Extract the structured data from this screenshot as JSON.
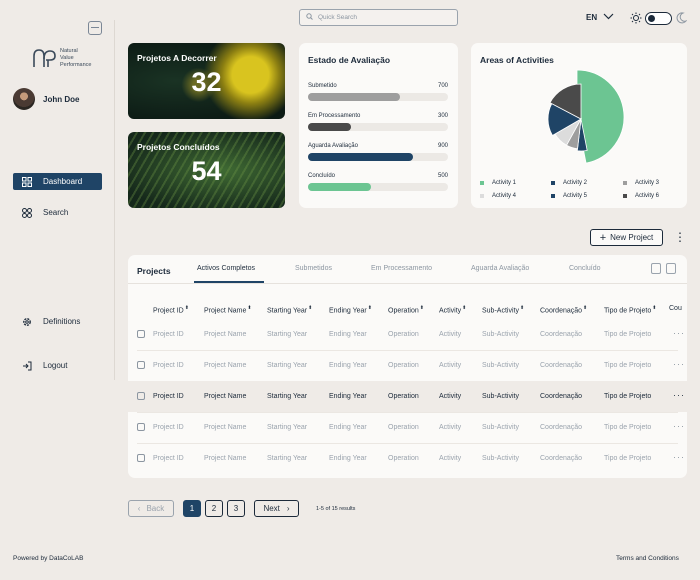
{
  "header": {
    "search_placeholder": "Quick Search",
    "language": "EN"
  },
  "sidebar": {
    "logo_text": [
      "Natural",
      "Value",
      "Performance"
    ],
    "user_name": "John Doe",
    "nav": [
      {
        "label": "Dashboard",
        "icon": "grid-icon",
        "active": true
      },
      {
        "label": "Search",
        "icon": "search-grid-icon",
        "active": false
      },
      {
        "label": "Definitions",
        "icon": "gear-icon",
        "active": false
      },
      {
        "label": "Logout",
        "icon": "logout-icon",
        "active": false
      }
    ]
  },
  "cards": {
    "ongoing": {
      "title": "Projetos A Decorrer",
      "value": "32"
    },
    "completed": {
      "title": "Projetos Concluídos",
      "value": "54"
    }
  },
  "estado": {
    "title": "Estado de Avaliação",
    "items": [
      {
        "label": "Submetido",
        "value": 700,
        "display": "700",
        "fraction": 0.66,
        "color": "#9e9e9e"
      },
      {
        "label": "Em Processamento",
        "value": 300,
        "display": "300",
        "fraction": 0.31,
        "color": "#4a4a4a"
      },
      {
        "label": "Aguarda Avaliação",
        "value": 900,
        "display": "900",
        "fraction": 0.75,
        "color": "#1f4466"
      },
      {
        "label": "Concluído",
        "value": 500,
        "display": "500",
        "fraction": 0.45,
        "color": "#6cc592"
      }
    ]
  },
  "areas": {
    "title": "Areas of Activities",
    "legend": [
      "Activity 1",
      "Activity 2",
      "Activity 3",
      "Activity 4",
      "Activity 5",
      "Activity 6"
    ]
  },
  "chart_data": {
    "type": "pie",
    "title": "Areas of Activities",
    "categories": [
      "Activity 1",
      "Activity 2",
      "Activity 3",
      "Activity 4",
      "Activity 5",
      "Activity 6"
    ],
    "values": [
      38,
      4,
      5,
      7,
      13,
      14
    ],
    "colors": [
      "#6cc592",
      "#1f4466",
      "#9e9e9e",
      "#dcdcdc",
      "#1f4466",
      "#4a4a4a"
    ],
    "legend_position": "bottom"
  },
  "actions": {
    "new_project": "New Project"
  },
  "table": {
    "label": "Projects",
    "tabs": [
      "Activos Completos",
      "Submetidos",
      "Em Processamento",
      "Aguarda Avaliação",
      "Concluído"
    ],
    "columns": [
      "Project ID",
      "Project Name",
      "Starting Year",
      "Ending Year",
      "Operation",
      "Activity",
      "Sub-Activity",
      "Coordenação",
      "Tipo de Projeto",
      "Cou"
    ],
    "rows": [
      [
        "Project ID",
        "Project Name",
        "Starting Year",
        "Ending Year",
        "Operation",
        "Activity",
        "Sub-Activity",
        "Coordenação",
        "Tipo de Projeto"
      ],
      [
        "Project ID",
        "Project Name",
        "Starting Year",
        "Ending Year",
        "Operation",
        "Activity",
        "Sub-Activity",
        "Coordenação",
        "Tipo de Projeto"
      ],
      [
        "Project ID",
        "Project Name",
        "Starting Year",
        "Ending Year",
        "Operation",
        "Activity",
        "Sub-Activity",
        "Coordenação",
        "Tipo de Projeto"
      ],
      [
        "Project ID",
        "Project Name",
        "Starting Year",
        "Ending Year",
        "Operation",
        "Activity",
        "Sub-Activity",
        "Coordenação",
        "Tipo de Projeto"
      ],
      [
        "Project ID",
        "Project Name",
        "Starting Year",
        "Ending Year",
        "Operation",
        "Activity",
        "Sub-Activity",
        "Coordenação",
        "Tipo de Projeto"
      ]
    ],
    "highlighted_row": 2
  },
  "pagination": {
    "back": "Back",
    "pages": [
      "1",
      "2",
      "3"
    ],
    "current": "1",
    "next": "Next",
    "results": "1-5 of 15 results"
  },
  "footer": {
    "powered": "Powered by DataCoLAB",
    "terms": "Terms and Conditions"
  },
  "colors": {
    "background": "#efebe7",
    "primary": "#1f4466",
    "green": "#6cc592",
    "text": "#1c2a3a"
  }
}
